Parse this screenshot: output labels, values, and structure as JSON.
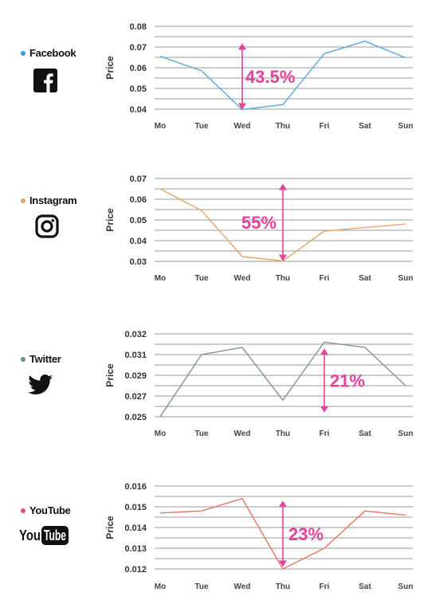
{
  "chart_data": [
    {
      "type": "line",
      "platform": "Facebook",
      "color": "#5aa8db",
      "categories": [
        "Mo",
        "Tue",
        "Wed",
        "Thu",
        "Fri",
        "Sat",
        "Sun"
      ],
      "values": [
        0.0655,
        0.0585,
        0.0398,
        0.0422,
        0.0668,
        0.0728,
        0.0648
      ],
      "yticks": [
        "0.08",
        "0.07",
        "0.06",
        "0.05",
        "0.04"
      ],
      "ylim": [
        0.04,
        0.08
      ],
      "ylabel": "Price",
      "annotation": "43.5%",
      "arrow_from": 0.0398,
      "arrow_to": 0.0718
    },
    {
      "type": "line",
      "platform": "Instagram",
      "color": "#e2a86a",
      "categories": [
        "Mo",
        "Tue",
        "Wed",
        "Thu",
        "Fri",
        "Sat",
        "Sun"
      ],
      "values": [
        0.065,
        0.0545,
        0.0323,
        0.0302,
        0.0446,
        0.0463,
        0.048
      ],
      "yticks": [
        "0.07",
        "0.06",
        "0.05",
        "0.04",
        "0.03"
      ],
      "ylim": [
        0.03,
        0.07
      ],
      "ylabel": "Price",
      "annotation": "55%",
      "arrow_from": 0.0302,
      "arrow_to": 0.0675
    },
    {
      "type": "line",
      "platform": "Twitter",
      "color": "#7f959b",
      "categories": [
        "Mo",
        "Tue",
        "Wed",
        "Thu",
        "Fri",
        "Sat",
        "Sun"
      ],
      "values": [
        0.025,
        0.031,
        0.0317,
        0.0266,
        0.0322,
        0.0317,
        0.028
      ],
      "yticks": [
        "0.032",
        "0.031",
        "0.029",
        "0.027",
        "0.025"
      ],
      "ylim": [
        0.025,
        0.033
      ],
      "ylabel": "Price",
      "annotation": "21%",
      "arrow_from": 0.0254,
      "arrow_to": 0.0316
    },
    {
      "type": "line",
      "platform": "YouTube",
      "color": "#ec7263",
      "categories": [
        "Mo",
        "Tue",
        "Wed",
        "Thu",
        "Fri",
        "Sat",
        "Sun"
      ],
      "values": [
        0.0147,
        0.0148,
        0.0154,
        0.012,
        0.013,
        0.0148,
        0.0146
      ],
      "yticks": [
        "0.016",
        "0.015",
        "0.014",
        "0.013",
        "0.012"
      ],
      "ylim": [
        0.012,
        0.016
      ],
      "ylabel": "Price",
      "annotation": "23%",
      "arrow_from": 0.0121,
      "arrow_to": 0.0153
    }
  ],
  "platforms": [
    {
      "name": "Facebook",
      "dot_color": "#2a9ee0",
      "icon": "facebook-icon"
    },
    {
      "name": "Instagram",
      "dot_color": "#e2a86a",
      "icon": "instagram-icon"
    },
    {
      "name": "Twitter",
      "dot_color": "#6f8a90",
      "icon": "twitter-icon"
    },
    {
      "name": "YouTube",
      "dot_color": "#e0506a",
      "icon": "youtube-icon"
    }
  ],
  "youtube_logo_text": [
    "You",
    "Tube"
  ],
  "grid_color": "#9a9a9a",
  "annotation_color": "#e8419a"
}
